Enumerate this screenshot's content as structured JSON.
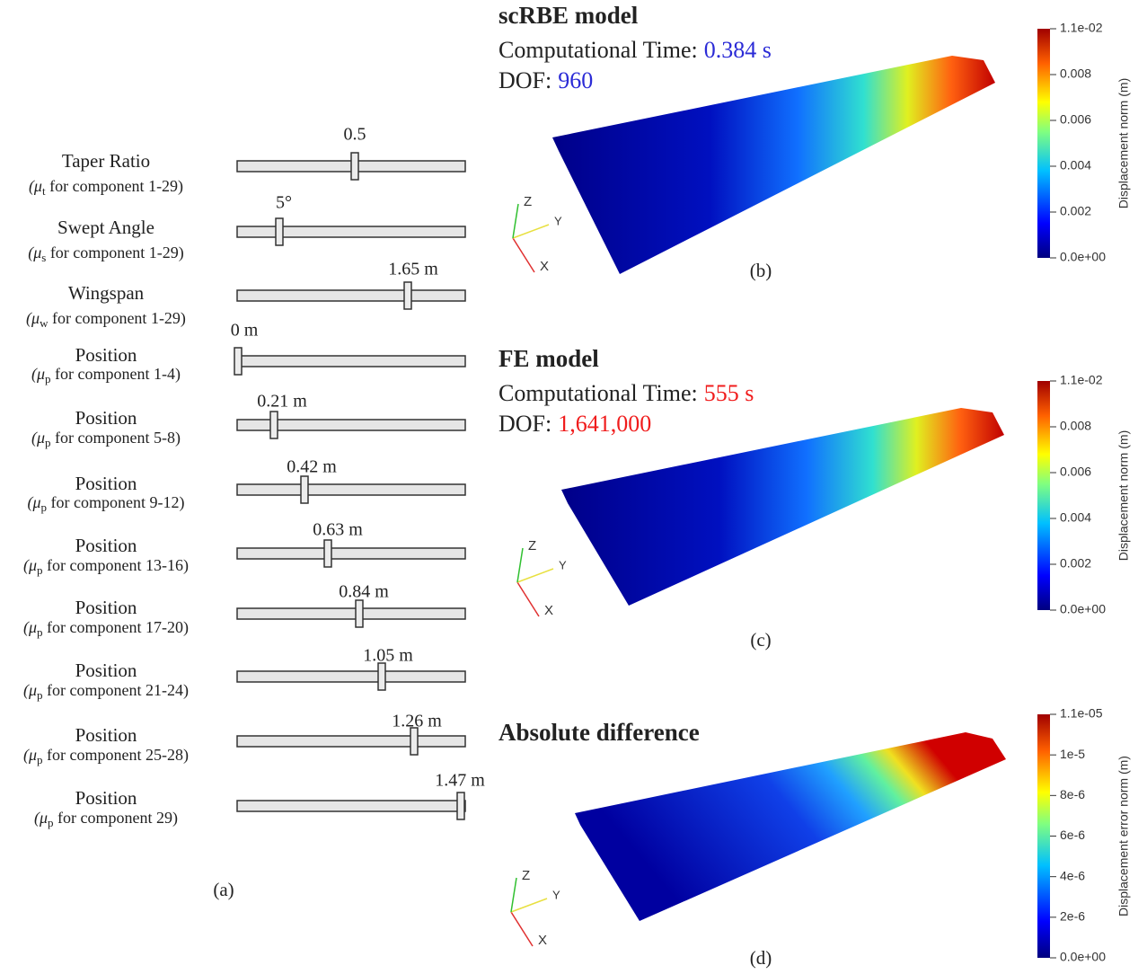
{
  "sliders": [
    {
      "label": "Taper Ratio",
      "prefix": "(μ",
      "subscript": "t",
      "suffix": " for component 1-29)",
      "value": "0.5"
    },
    {
      "label": "Swept Angle",
      "prefix": "(μ",
      "subscript": "s",
      "suffix": " for component 1-29)",
      "value": "5°"
    },
    {
      "label": "Wingspan",
      "prefix": "(μ",
      "subscript": "w",
      "suffix": " for component 1-29)",
      "value": "1.65 m"
    },
    {
      "label": "Position",
      "prefix": "(μ",
      "subscript": "p",
      "suffix": " for component 1-4)",
      "value": "0 m"
    },
    {
      "label": "Position",
      "prefix": "(μ",
      "subscript": "p",
      "suffix": " for component 5-8)",
      "value": "0.21 m"
    },
    {
      "label": "Position",
      "prefix": "(μ",
      "subscript": "p",
      "suffix": " for component 9-12)",
      "value": "0.42 m"
    },
    {
      "label": "Position",
      "prefix": "(μ",
      "subscript": "p",
      "suffix": " for component 13-16)",
      "value": "0.63 m"
    },
    {
      "label": "Position",
      "prefix": "(μ",
      "subscript": "p",
      "suffix": " for component 17-20)",
      "value": "0.84 m"
    },
    {
      "label": "Position",
      "prefix": "(μ",
      "subscript": "p",
      "suffix": " for component 21-24)",
      "value": "1.05 m"
    },
    {
      "label": "Position",
      "prefix": "(μ",
      "subscript": "p",
      "suffix": " for component 25-28)",
      "value": "1.26 m"
    },
    {
      "label": "Position",
      "prefix": "(μ",
      "subscript": "p",
      "suffix": " for component 29)",
      "value": "1.47 m"
    }
  ],
  "panel_a_label": "(a)",
  "axis_labels": [
    "X",
    "Y",
    "Z"
  ],
  "panels": [
    {
      "title": "scRBE model",
      "time_label": "Computational Time:",
      "time": "0.384 s",
      "dof_label": "DOF:",
      "dof": "960",
      "value_color": "#2b2bd6",
      "label": "(b)",
      "colorbar_title": "Displacement norm (m)",
      "colorbar_ticks": [
        "1.1e-02",
        "0.008",
        "0.006",
        "0.004",
        "0.002",
        "0.0e+00"
      ]
    },
    {
      "title": "FE model",
      "time_label": "Computational Time:",
      "time": "555 s",
      "dof_label": "DOF:",
      "dof": "1,641,000",
      "value_color": "#f01c1c",
      "label": "(c)",
      "colorbar_title": "Displacement norm (m)",
      "colorbar_ticks": [
        "1.1e-02",
        "0.008",
        "0.006",
        "0.004",
        "0.002",
        "0.0e+00"
      ]
    },
    {
      "title": "Absolute difference",
      "label": "(d)",
      "colorbar_title": "Displacement error norm (m)",
      "colorbar_ticks": [
        "1.1e-05",
        "1e-5",
        "8e-6",
        "6e-6",
        "4e-6",
        "2e-6",
        "0.0e+00"
      ]
    }
  ]
}
